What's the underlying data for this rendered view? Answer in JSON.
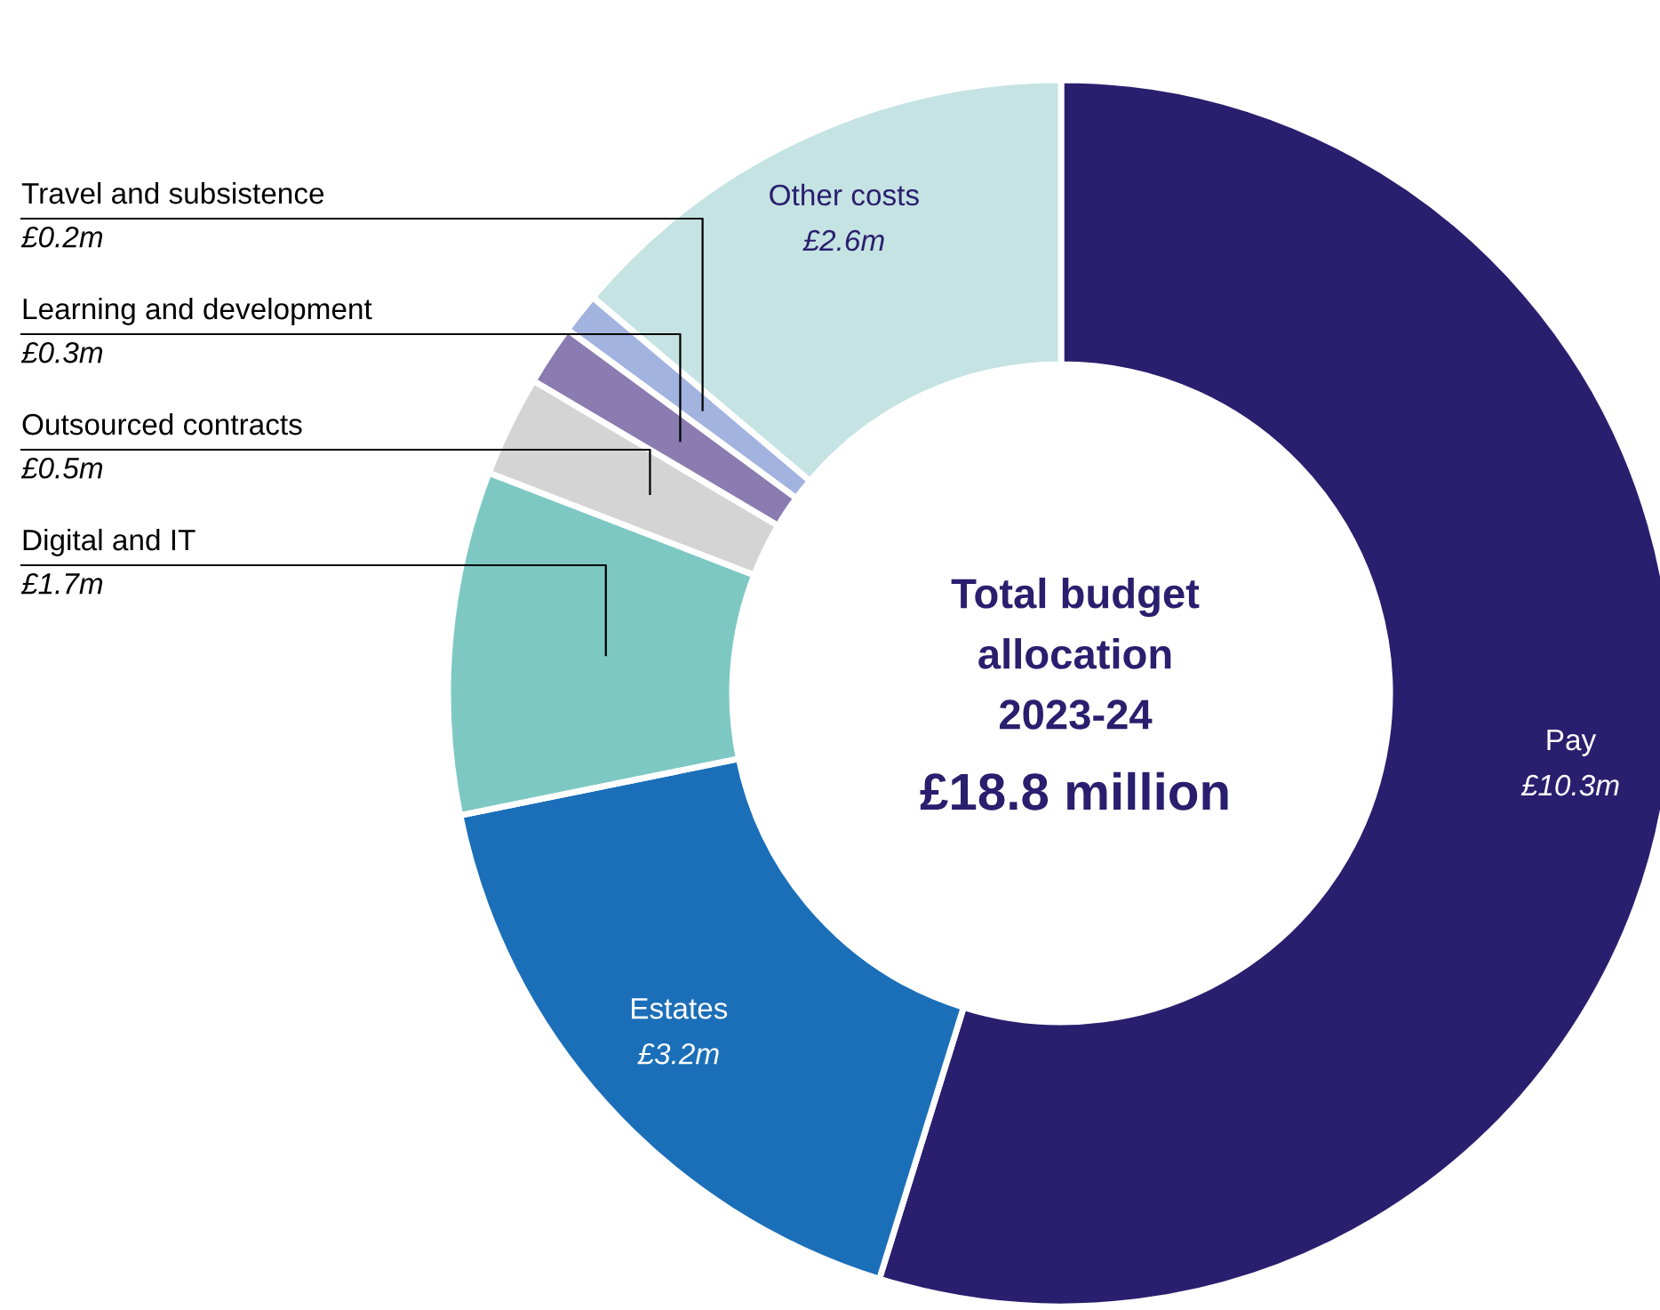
{
  "chart_data": {
    "type": "donut",
    "title": "Total budget\nallocation\n2023-24",
    "subtitle": "£18.8 million",
    "categories": [
      "Pay",
      "Estates",
      "Digital and IT",
      "Outsourced contracts",
      "Learning and development",
      "Travel and subsistence",
      "Other costs"
    ],
    "values": [
      10.3,
      3.2,
      1.7,
      0.5,
      0.3,
      0.2,
      2.6
    ],
    "value_labels": [
      "£10.3m",
      "£3.2m",
      "£1.7m",
      "£0.5m",
      "£0.3m",
      "£0.2m",
      "£2.6m"
    ],
    "colors": [
      "#2a1f6e",
      "#1b6fb8",
      "#7ec8c3",
      "#d4d4d4",
      "#8a7bb0",
      "#a2b3e0",
      "#c5e3e3"
    ],
    "legend": false
  }
}
